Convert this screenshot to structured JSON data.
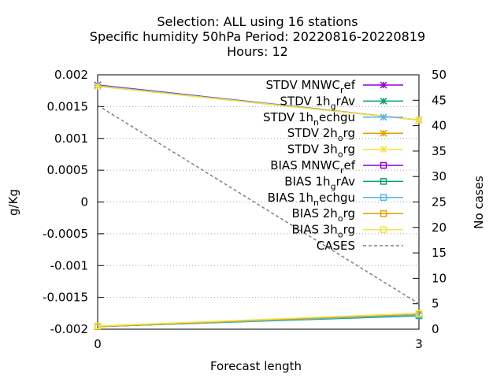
{
  "chart_data": {
    "type": "line",
    "title_lines": [
      "Selection: ALL using    16 stations",
      "Specific humidity 50hPa   Period: 20220816-20220819",
      "Hours:  12"
    ],
    "xlabel": "Forecast length",
    "ylabel": "g/Kg",
    "y2label": "No cases",
    "x": [
      0,
      3
    ],
    "xlim": [
      0,
      3
    ],
    "ylim": [
      -0.002,
      0.002
    ],
    "y2lim": [
      0,
      50
    ],
    "xticks": [
      "0",
      "3"
    ],
    "yticks": [
      "0.002",
      "0.0015",
      "0.001",
      "0.0005",
      "0",
      "-0.0005",
      "-0.001",
      "-0.0015",
      "-0.002"
    ],
    "y2ticks": [
      "50",
      "45",
      "40",
      "35",
      "30",
      "25",
      "20",
      "15",
      "10",
      "5",
      "0"
    ],
    "grid": true,
    "legend_position": "top-right",
    "series": [
      {
        "name": "STDV MNWC_ref",
        "legend_main": "STDV MNWC",
        "legend_sub": "r",
        "legend_tail": "ef",
        "color": "#9400d3",
        "marker": "star",
        "axis": "y1",
        "values": [
          0.00184,
          0.00129
        ]
      },
      {
        "name": "STDV 1h_grAv",
        "legend_main": "STDV 1h",
        "legend_sub": "g",
        "legend_tail": "rAv",
        "color": "#009e73",
        "marker": "star",
        "axis": "y1",
        "values": [
          0.00183,
          0.00129
        ]
      },
      {
        "name": "STDV 1h_nechgu",
        "legend_main": "STDV 1h",
        "legend_sub": "n",
        "legend_tail": "echgu",
        "color": "#56b4e9",
        "marker": "star",
        "axis": "y1",
        "values": [
          0.00183,
          0.00129
        ]
      },
      {
        "name": "STDV 2h_org",
        "legend_main": "STDV 2h",
        "legend_sub": "o",
        "legend_tail": "rg",
        "color": "#e69f00",
        "marker": "star",
        "axis": "y1",
        "values": [
          0.00182,
          0.00129
        ]
      },
      {
        "name": "STDV 3h_org",
        "legend_main": "STDV 3h",
        "legend_sub": "o",
        "legend_tail": "rg",
        "color": "#f0e442",
        "marker": "star",
        "axis": "y1",
        "values": [
          0.00182,
          0.00129
        ]
      },
      {
        "name": "BIAS MNWC_ref",
        "legend_main": "BIAS MNWC",
        "legend_sub": "r",
        "legend_tail": "ef",
        "color": "#9400d3",
        "marker": "square",
        "axis": "y1",
        "values": [
          -0.00196,
          -0.00178
        ]
      },
      {
        "name": "BIAS 1h_grAv",
        "legend_main": "BIAS 1h",
        "legend_sub": "g",
        "legend_tail": "rAv",
        "color": "#009e73",
        "marker": "square",
        "axis": "y1",
        "values": [
          -0.00196,
          -0.00179
        ]
      },
      {
        "name": "BIAS 1h_nechgu",
        "legend_main": "BIAS 1h",
        "legend_sub": "n",
        "legend_tail": "echgu",
        "color": "#56b4e9",
        "marker": "square",
        "axis": "y1",
        "values": [
          -0.00196,
          -0.00178
        ]
      },
      {
        "name": "BIAS 2h_org",
        "legend_main": "BIAS 2h",
        "legend_sub": "o",
        "legend_tail": "rg",
        "color": "#e69f00",
        "marker": "square",
        "axis": "y1",
        "values": [
          -0.00196,
          -0.00176
        ]
      },
      {
        "name": "BIAS 3h_org",
        "legend_main": "BIAS 3h",
        "legend_sub": "o",
        "legend_tail": "rg",
        "color": "#f0e442",
        "marker": "square",
        "axis": "y1",
        "values": [
          -0.00195,
          -0.00175
        ]
      },
      {
        "name": "CASES",
        "legend_main": "CASES",
        "legend_sub": "",
        "legend_tail": "",
        "color": "#808080",
        "marker": "none",
        "dashed": true,
        "axis": "y2",
        "values": [
          44,
          5
        ]
      }
    ]
  }
}
